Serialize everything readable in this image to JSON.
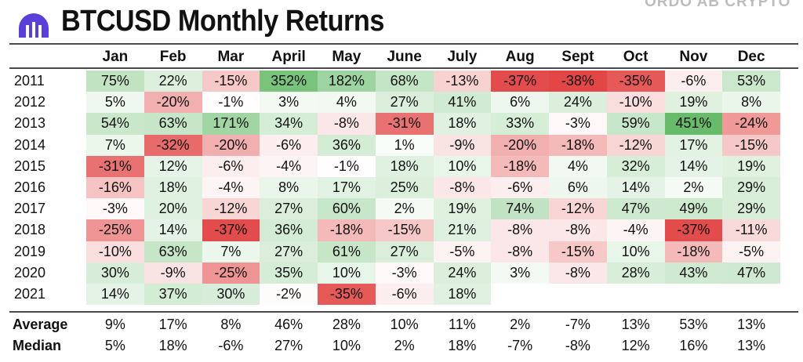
{
  "header": {
    "title": "BTCUSD Monthly Returns",
    "watermark": "ORDO AB CRYPTO",
    "logo_icon": "exchange-logo-icon",
    "logo_color": "#5a3fd8"
  },
  "colors": {
    "positive": "#4caf50",
    "negative": "#e03c3c"
  },
  "chart_data": {
    "type": "heatmap",
    "title": "BTCUSD Monthly Returns",
    "columns": [
      "Jan",
      "Feb",
      "Mar",
      "April",
      "May",
      "June",
      "July",
      "Aug",
      "Sept",
      "Oct",
      "Nov",
      "Dec"
    ],
    "rows": [
      {
        "year": "2011",
        "values": [
          "75%",
          "22%",
          "-15%",
          "352%",
          "182%",
          "68%",
          "-13%",
          "-37%",
          "-38%",
          "-35%",
          "-6%",
          "53%"
        ]
      },
      {
        "year": "2012",
        "values": [
          "5%",
          "-20%",
          "-1%",
          "3%",
          "4%",
          "27%",
          "41%",
          "6%",
          "24%",
          "-10%",
          "19%",
          "8%"
        ]
      },
      {
        "year": "2013",
        "values": [
          "54%",
          "63%",
          "171%",
          "34%",
          "-8%",
          "-31%",
          "18%",
          "33%",
          "-3%",
          "59%",
          "451%",
          "-24%"
        ]
      },
      {
        "year": "2014",
        "values": [
          "7%",
          "-32%",
          "-20%",
          "-6%",
          "36%",
          "1%",
          "-9%",
          "-20%",
          "-18%",
          "-12%",
          "17%",
          "-15%"
        ]
      },
      {
        "year": "2015",
        "values": [
          "-31%",
          "12%",
          "-6%",
          "-4%",
          "-1%",
          "18%",
          "10%",
          "-18%",
          "4%",
          "32%",
          "14%",
          "19%"
        ]
      },
      {
        "year": "2016",
        "values": [
          "-16%",
          "18%",
          "-4%",
          "8%",
          "17%",
          "25%",
          "-8%",
          "-6%",
          "6%",
          "14%",
          "2%",
          "29%"
        ]
      },
      {
        "year": "2017",
        "values": [
          "-3%",
          "20%",
          "-12%",
          "27%",
          "60%",
          "2%",
          "19%",
          "74%",
          "-12%",
          "47%",
          "49%",
          "29%"
        ]
      },
      {
        "year": "2018",
        "values": [
          "-25%",
          "14%",
          "-37%",
          "36%",
          "-18%",
          "-15%",
          "21%",
          "-8%",
          "-8%",
          "-4%",
          "-37%",
          "-11%"
        ]
      },
      {
        "year": "2019",
        "values": [
          "-10%",
          "63%",
          "7%",
          "27%",
          "61%",
          "27%",
          "-5%",
          "-8%",
          "-15%",
          "10%",
          "-18%",
          "-5%"
        ]
      },
      {
        "year": "2020",
        "values": [
          "30%",
          "-9%",
          "-25%",
          "35%",
          "10%",
          "-3%",
          "24%",
          "3%",
          "-8%",
          "28%",
          "43%",
          "47%"
        ]
      },
      {
        "year": "2021",
        "values": [
          "14%",
          "37%",
          "30%",
          "-2%",
          "-35%",
          "-6%",
          "18%",
          "",
          "",
          "",
          "",
          ""
        ]
      }
    ],
    "summary": [
      {
        "label": "Average",
        "values": [
          "9%",
          "17%",
          "8%",
          "46%",
          "28%",
          "10%",
          "11%",
          "2%",
          "-7%",
          "13%",
          "53%",
          "13%"
        ]
      },
      {
        "label": "Median",
        "values": [
          "5%",
          "18%",
          "-6%",
          "27%",
          "10%",
          "2%",
          "18%",
          "-7%",
          "-8%",
          "12%",
          "16%",
          "13%"
        ]
      }
    ]
  }
}
